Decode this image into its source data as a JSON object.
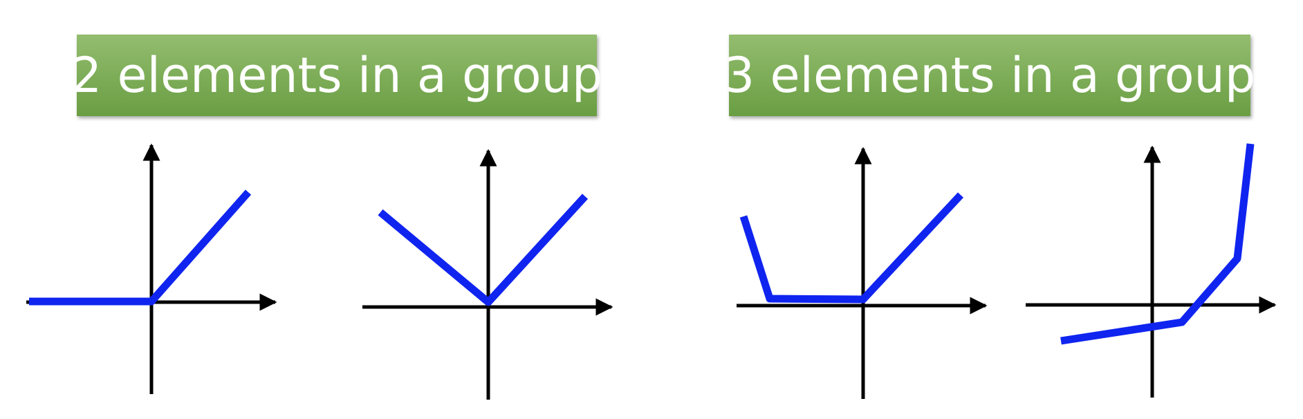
{
  "titles": {
    "left": "2 elements in a group",
    "right": "3 elements in a group"
  },
  "colors": {
    "banner_top": "#93bd6f",
    "banner_bottom": "#6a9e43",
    "curve": "#1024f0",
    "axis": "#000000"
  },
  "panels": [
    {
      "id": "two-element-relu",
      "group": "2 elements in a group",
      "function": "max(0, x)"
    },
    {
      "id": "two-element-absolute",
      "group": "2 elements in a group",
      "function": "|x|"
    },
    {
      "id": "three-element-steep-flat-rise",
      "group": "3 elements in a group",
      "function": "piecewise: steep descent, flat, linear rise"
    },
    {
      "id": "three-element-convex",
      "group": "3 elements in a group",
      "function": "piecewise convex: shallow, medium, steep"
    }
  ]
}
